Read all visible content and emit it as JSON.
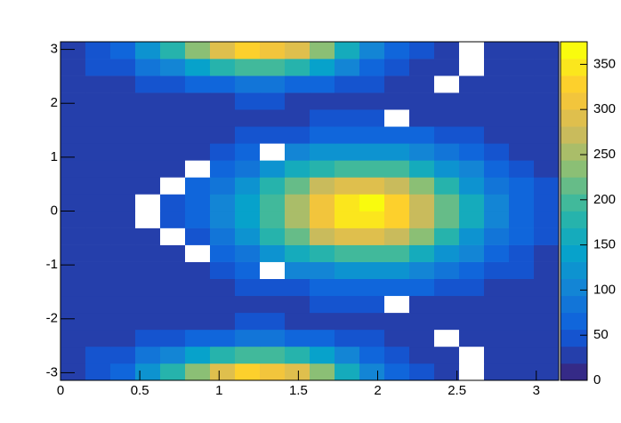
{
  "chart_data": {
    "type": "heatmap",
    "xlim": [
      0,
      3.1416
    ],
    "ylim": [
      -3.1416,
      3.1416
    ],
    "xticks": [
      0,
      0.5,
      1,
      1.5,
      2,
      2.5,
      3
    ],
    "yticks": [
      -3,
      -2,
      -1,
      0,
      1,
      2,
      3
    ],
    "zlim": [
      0,
      375
    ],
    "zticks": [
      0,
      50,
      100,
      150,
      200,
      250,
      300,
      350
    ],
    "contour_levels": 20,
    "empty_color": "#ffffff",
    "colormap": [
      "#352a87",
      "#0f5cdd",
      "#1481d6",
      "#06a4ca",
      "#2eb7a4",
      "#87bf77",
      "#d1bb59",
      "#fec832",
      "#f9fb0e"
    ],
    "z": [
      [
        36,
        49,
        73,
        114,
        171,
        230,
        287,
        320,
        317,
        284,
        225,
        162,
        111,
        70,
        46,
        34,
        0,
        25,
        25,
        25
      ],
      [
        31,
        39,
        52,
        75,
        107,
        141,
        172,
        191,
        189,
        171,
        137,
        102,
        74,
        50,
        37,
        30,
        0,
        25,
        25,
        25
      ],
      [
        27,
        30,
        34,
        42,
        52,
        64,
        74,
        80,
        80,
        74,
        62,
        51,
        41,
        33,
        29,
        0,
        26,
        25,
        25,
        25
      ],
      [
        25,
        26,
        27,
        28,
        30,
        33,
        36,
        38,
        39,
        37,
        36,
        35,
        33,
        31,
        30,
        28,
        27,
        26,
        26,
        25
      ],
      [
        25,
        25,
        25,
        25,
        26,
        27,
        28,
        31,
        33,
        36,
        39,
        41,
        41,
        0,
        37,
        34,
        31,
        29,
        27,
        26
      ],
      [
        25,
        25,
        25,
        26,
        28,
        30,
        34,
        40,
        48,
        56,
        64,
        68,
        69,
        65,
        58,
        50,
        42,
        36,
        31,
        28
      ],
      [
        25,
        25,
        26,
        28,
        31,
        36,
        46,
        60,
        0,
        95,
        112,
        122,
        123,
        115,
        99,
        81,
        64,
        49,
        38,
        32
      ],
      [
        25,
        26,
        27,
        30,
        36,
        0,
        63,
        88,
        120,
        153,
        183,
        201,
        204,
        189,
        160,
        128,
        95,
        68,
        48,
        37
      ],
      [
        25,
        26,
        28,
        32,
        0,
        56,
        82,
        120,
        169,
        218,
        264,
        291,
        295,
        272,
        229,
        180,
        131,
        91,
        60,
        43
      ],
      [
        25,
        26,
        28,
        0,
        44,
        63,
        94,
        140,
        200,
        259,
        315,
        348,
        352,
        325,
        272,
        213,
        154,
        105,
        68,
        47
      ],
      [
        25,
        27,
        29,
        0,
        45,
        62,
        95,
        142,
        202,
        262,
        318,
        352,
        365,
        330,
        274,
        215,
        155,
        104,
        67,
        46
      ],
      [
        25,
        26,
        28,
        33,
        0,
        57,
        83,
        121,
        170,
        220,
        266,
        293,
        297,
        271,
        228,
        181,
        130,
        90,
        59,
        42
      ],
      [
        25,
        26,
        27,
        30,
        36,
        0,
        62,
        89,
        121,
        152,
        184,
        200,
        205,
        190,
        161,
        127,
        96,
        67,
        47,
        36
      ],
      [
        25,
        25,
        26,
        28,
        31,
        36,
        47,
        61,
        0,
        94,
        113,
        121,
        124,
        114,
        98,
        82,
        63,
        48,
        37,
        31
      ],
      [
        25,
        25,
        25,
        26,
        28,
        30,
        34,
        40,
        48,
        56,
        64,
        68,
        69,
        65,
        58,
        50,
        42,
        36,
        31,
        28
      ],
      [
        25,
        25,
        25,
        25,
        26,
        27,
        28,
        31,
        33,
        36,
        39,
        41,
        41,
        0,
        37,
        34,
        31,
        29,
        27,
        26
      ],
      [
        25,
        26,
        27,
        28,
        30,
        33,
        36,
        38,
        39,
        37,
        36,
        35,
        33,
        31,
        30,
        28,
        27,
        26,
        26,
        25
      ],
      [
        27,
        30,
        34,
        42,
        52,
        64,
        74,
        80,
        80,
        74,
        62,
        51,
        41,
        33,
        29,
        0,
        26,
        25,
        25,
        25
      ],
      [
        31,
        39,
        52,
        75,
        107,
        141,
        172,
        191,
        189,
        171,
        137,
        102,
        74,
        50,
        37,
        30,
        0,
        25,
        25,
        25
      ],
      [
        37,
        50,
        74,
        115,
        172,
        231,
        289,
        330,
        318,
        285,
        226,
        163,
        112,
        71,
        46,
        34,
        0,
        25,
        25,
        25
      ]
    ]
  }
}
